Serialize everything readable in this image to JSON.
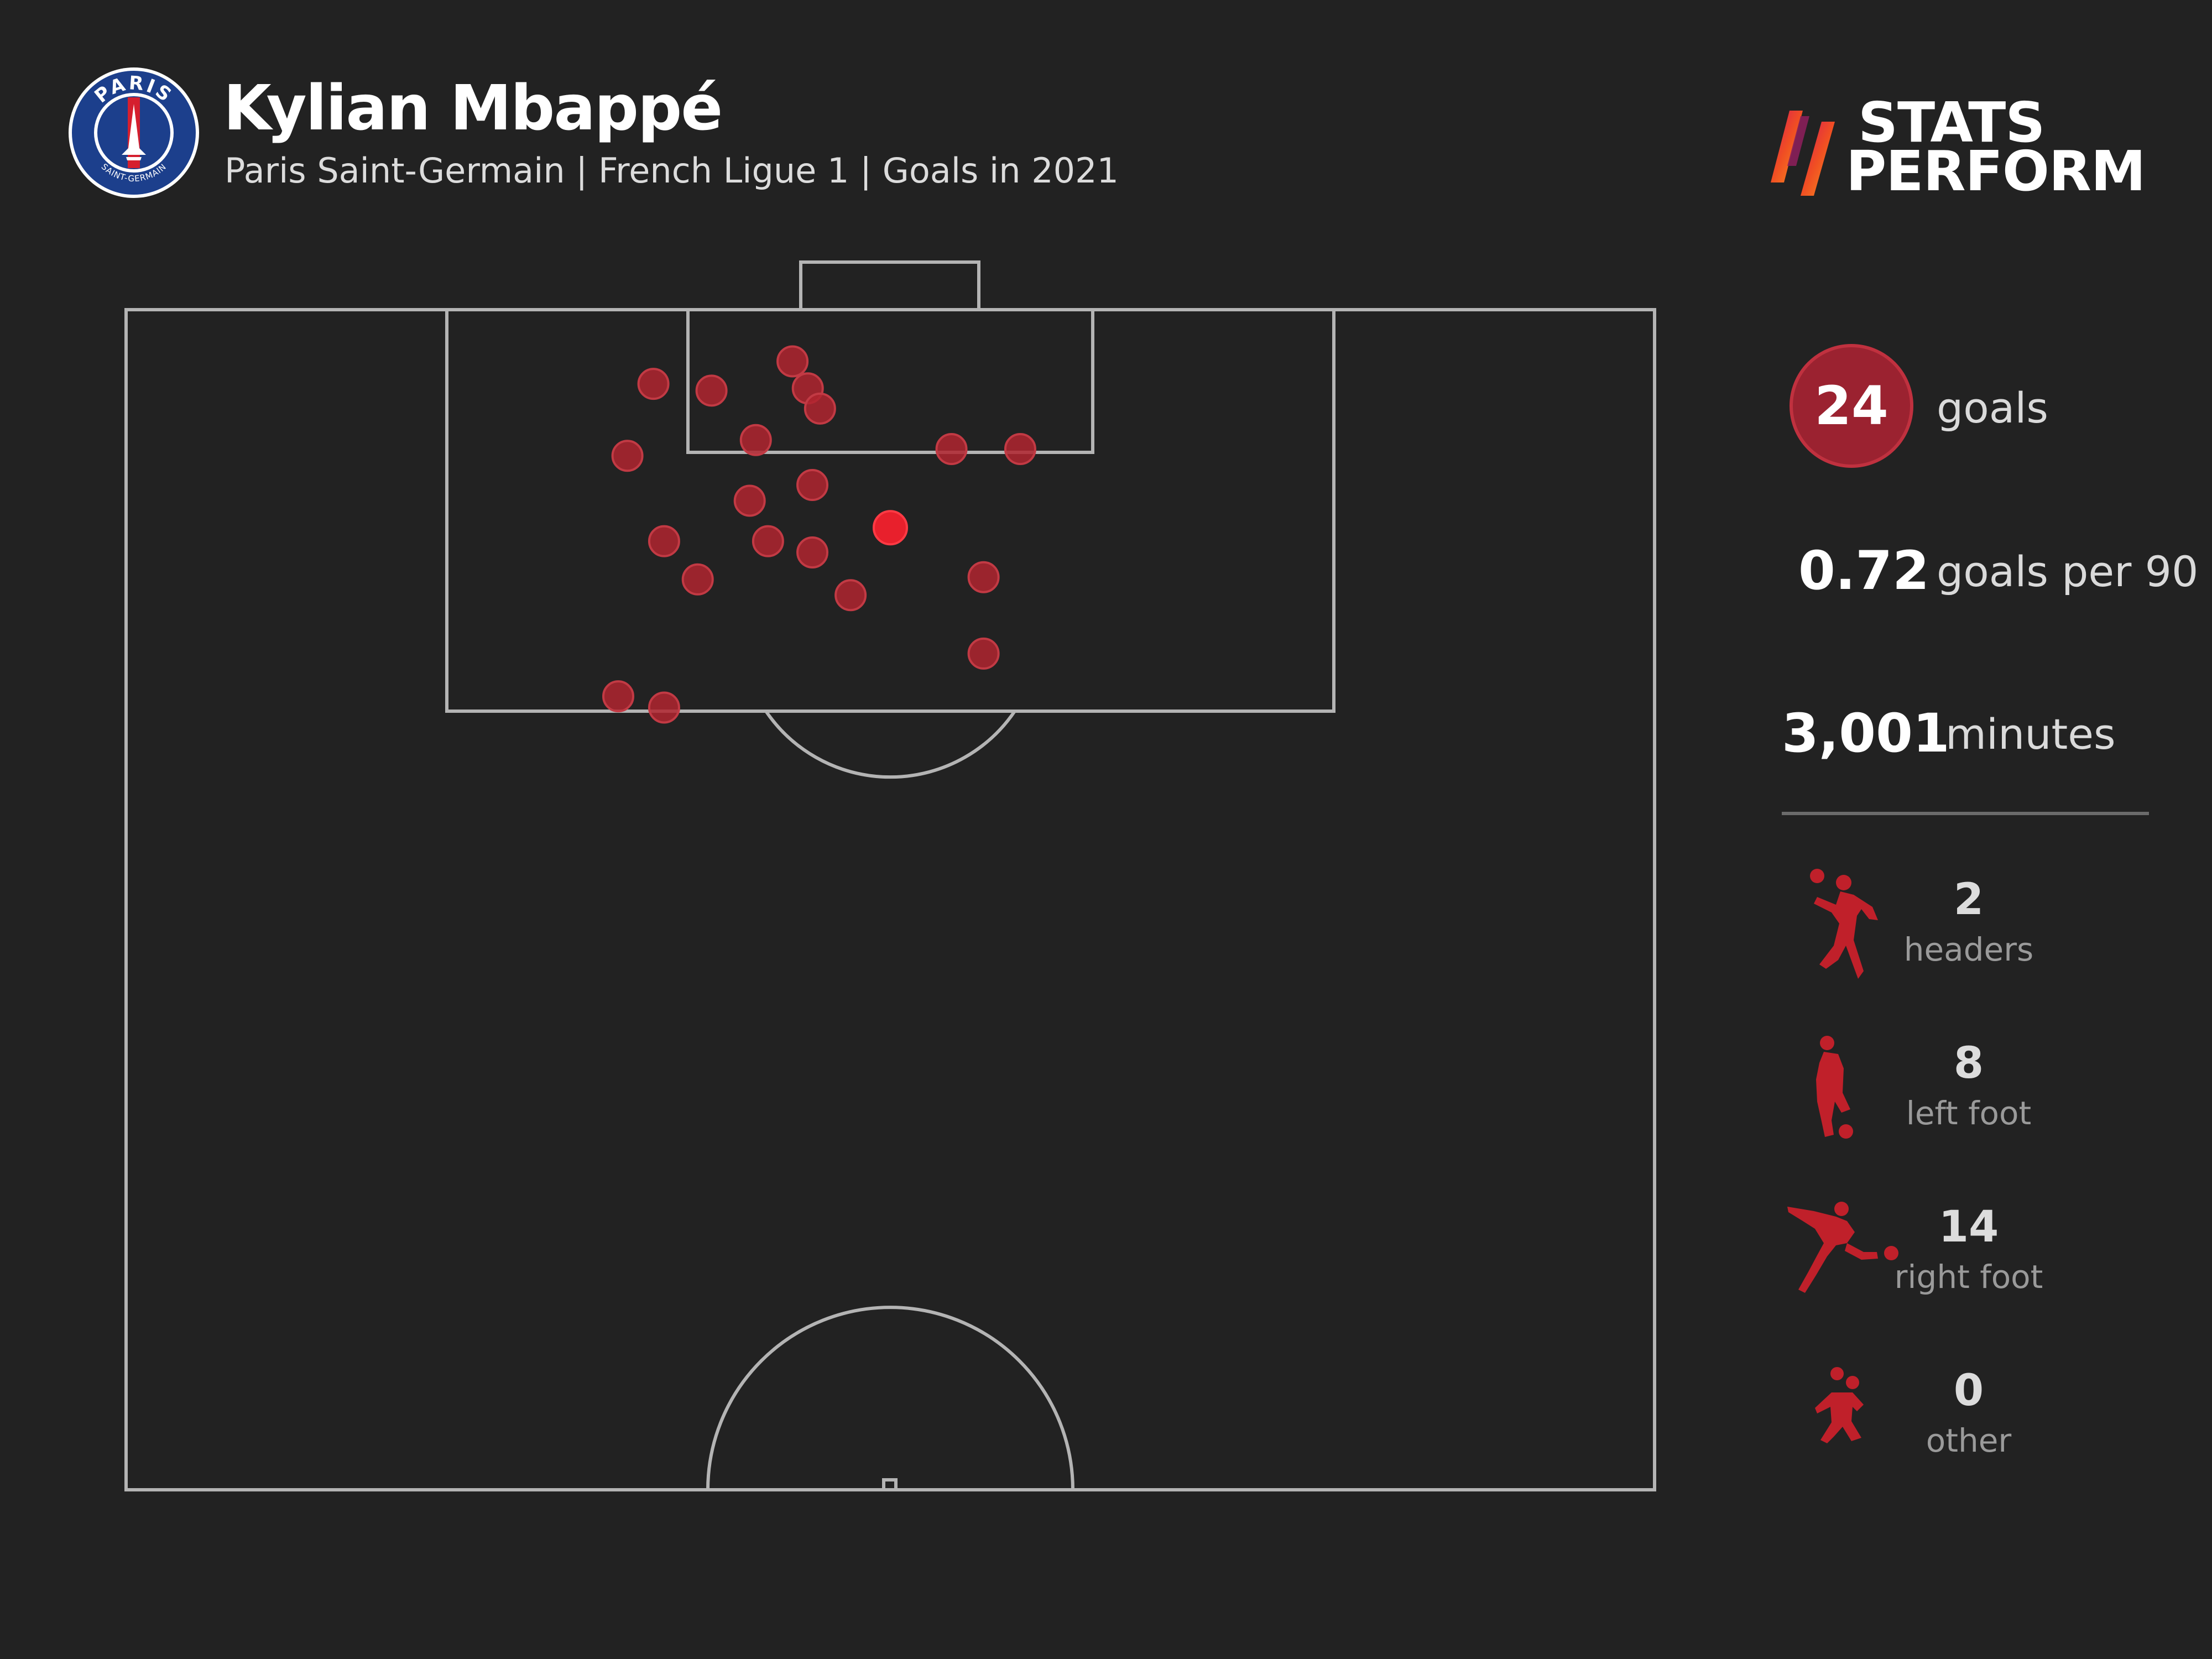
{
  "header": {
    "player_name": "Kylian Mbappé",
    "subtitle": "Paris Saint-Germain | French Ligue 1 | Goals in 2021",
    "club_logo_icon": "psg-crest-icon",
    "club_logo_top_text": "PARIS",
    "club_logo_bottom_text": "SAINT-GERMAIN"
  },
  "brand": {
    "line1": "STATS",
    "line2": "PERFORM",
    "logo_icon": "stats-perform-slashes-icon"
  },
  "stats": {
    "goals_value": "24",
    "goals_label": "goals",
    "per90_value": "0.72",
    "per90_label": "goals per 90",
    "minutes_value": "3,001",
    "minutes_label": "minutes"
  },
  "goal_types": [
    {
      "icon": "header-player-icon",
      "count": "2",
      "label": "headers"
    },
    {
      "icon": "left-foot-player-icon",
      "count": "8",
      "label": "left foot"
    },
    {
      "icon": "right-foot-player-icon",
      "count": "14",
      "label": "right foot"
    },
    {
      "icon": "other-player-icon",
      "count": "0",
      "label": "other"
    }
  ],
  "colors": {
    "background": "#222222",
    "pitch_lines": "#b4b4b4",
    "goal_marker": "#b0242f",
    "highlight_marker": "#e8202c",
    "icon_red": "#c0202a"
  },
  "chart_data": {
    "type": "scatter",
    "description_units": "pitch coordinates: x = 0 (left touchline) to 100 (right touchline), y = distance from goal line in metres-like units (0 at goal line, 52.5 at halfway line)",
    "xlim": [
      0,
      100
    ],
    "ylim": [
      0,
      52.5
    ],
    "points": [
      {
        "x": 34.5,
        "y": 3.3
      },
      {
        "x": 38.3,
        "y": 3.6
      },
      {
        "x": 43.6,
        "y": 2.3
      },
      {
        "x": 44.6,
        "y": 3.5
      },
      {
        "x": 45.4,
        "y": 4.4
      },
      {
        "x": 41.2,
        "y": 5.8
      },
      {
        "x": 32.8,
        "y": 6.5
      },
      {
        "x": 54.0,
        "y": 6.2
      },
      {
        "x": 58.5,
        "y": 6.2
      },
      {
        "x": 44.9,
        "y": 7.8
      },
      {
        "x": 40.8,
        "y": 8.5
      },
      {
        "x": 35.2,
        "y": 10.3
      },
      {
        "x": 42.0,
        "y": 10.3
      },
      {
        "x": 44.9,
        "y": 10.8
      },
      {
        "x": 50.0,
        "y": 9.7,
        "highlight": true
      },
      {
        "x": 37.4,
        "y": 12.0
      },
      {
        "x": 47.4,
        "y": 12.7
      },
      {
        "x": 56.1,
        "y": 11.9
      },
      {
        "x": 56.1,
        "y": 15.3
      },
      {
        "x": 32.2,
        "y": 17.2
      },
      {
        "x": 35.2,
        "y": 17.7
      }
    ]
  }
}
